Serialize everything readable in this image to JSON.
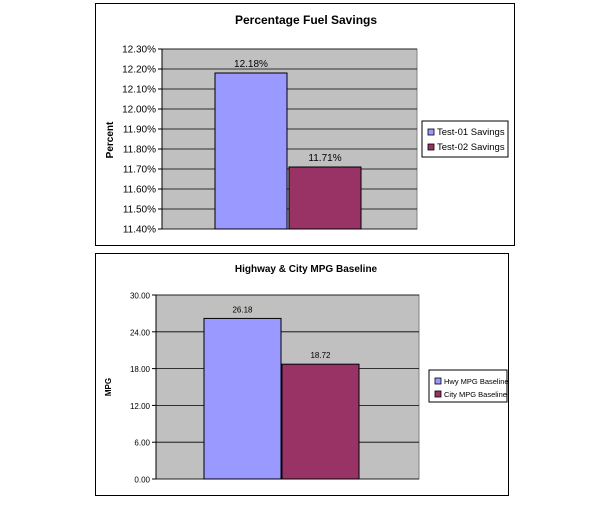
{
  "chart_data": [
    {
      "type": "bar",
      "title": "Percentage Fuel Savings",
      "xlabel": "",
      "ylabel": "Percent",
      "ylim": [
        11.4,
        12.3
      ],
      "ytick_step": 0.1,
      "ytick_labels": [
        "11.40%",
        "11.50%",
        "11.60%",
        "11.70%",
        "11.80%",
        "11.90%",
        "12.00%",
        "12.10%",
        "12.20%",
        "12.30%"
      ],
      "grid": true,
      "legend_position": "right",
      "series": [
        {
          "name": "Test-01 Savings",
          "value": 12.18,
          "label": "12.18%",
          "color": "#9999ff"
        },
        {
          "name": "Test-02 Savings",
          "value": 11.71,
          "label": "11.71%",
          "color": "#993366"
        }
      ]
    },
    {
      "type": "bar",
      "title": "Highway & City MPG Baseline",
      "xlabel": "",
      "ylabel": "MPG",
      "ylim": [
        0,
        30
      ],
      "ytick_step": 6,
      "ytick_labels": [
        "0.00",
        "6.00",
        "12.00",
        "18.00",
        "24.00",
        "30.00"
      ],
      "grid": true,
      "legend_position": "right",
      "series": [
        {
          "name": "Hwy MPG Baseline",
          "value": 26.18,
          "label": "26.18",
          "color": "#9999ff"
        },
        {
          "name": "City MPG Baseline",
          "value": 18.72,
          "label": "18.72",
          "color": "#993366"
        }
      ]
    }
  ]
}
